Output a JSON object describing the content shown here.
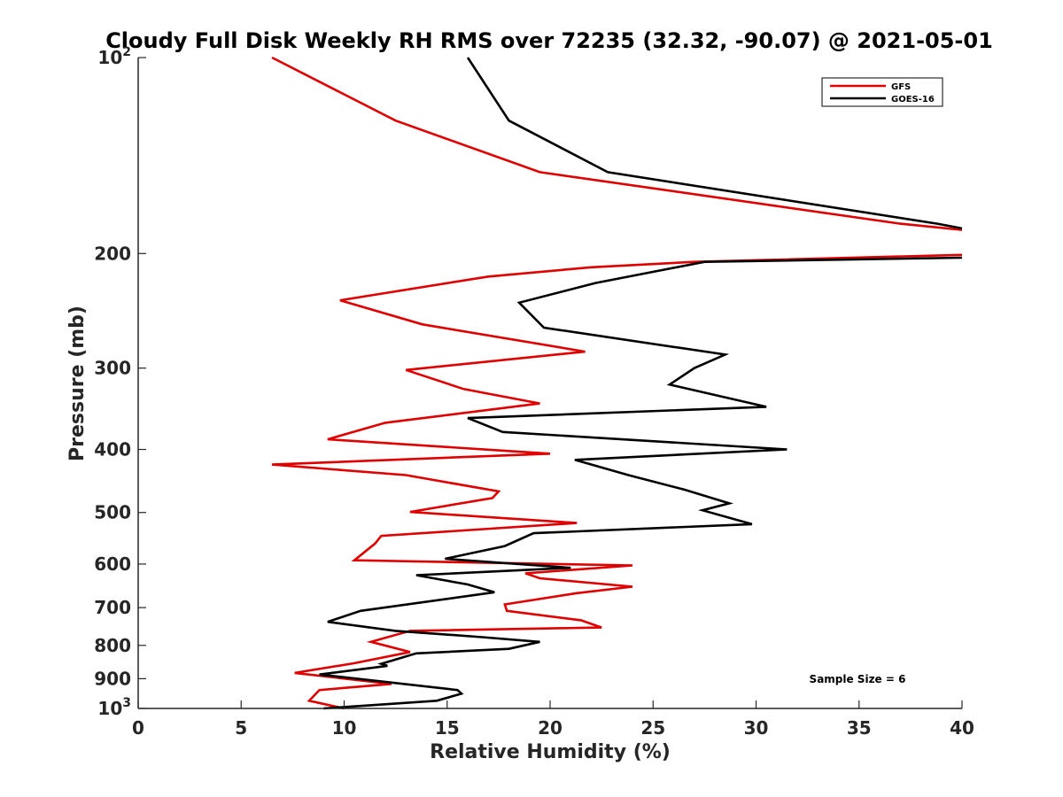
{
  "chart_data": {
    "type": "line",
    "title": "Cloudy Full Disk Weekly RH RMS over 72235 (32.32, -90.07) @ 2021-05-01",
    "xlabel": "Relative Humidity (%)",
    "ylabel": "Pressure (mb)",
    "xlim": [
      0,
      40
    ],
    "ylim": [
      100,
      1000
    ],
    "yscale": "log",
    "y_reversed": true,
    "grid": false,
    "legend_position": "top-right",
    "x_ticks": [
      0,
      5,
      10,
      15,
      20,
      25,
      30,
      35,
      40
    ],
    "x_tick_labels": [
      "0",
      "5",
      "10",
      "15",
      "20",
      "25",
      "30",
      "35",
      "40"
    ],
    "y_ticks": [
      {
        "value": 100,
        "base": "10",
        "exp": "2"
      },
      {
        "value": 200,
        "label": "200"
      },
      {
        "value": 300,
        "label": "300"
      },
      {
        "value": 400,
        "label": "400"
      },
      {
        "value": 500,
        "label": "500"
      },
      {
        "value": 600,
        "label": "600"
      },
      {
        "value": 700,
        "label": "700"
      },
      {
        "value": 800,
        "label": "800"
      },
      {
        "value": 900,
        "label": "900"
      },
      {
        "value": 1000,
        "base": "10",
        "exp": "3"
      }
    ],
    "series": [
      {
        "name": "GFS",
        "color": "#e00000",
        "points": [
          [
            6.5,
            100
          ],
          [
            12.5,
            125
          ],
          [
            19.5,
            150
          ],
          [
            37.0,
            180
          ],
          [
            40.0,
            184
          ],
          [
            null,
            null
          ],
          [
            40.0,
            201
          ],
          [
            27.0,
            206
          ],
          [
            22.0,
            210
          ],
          [
            17.0,
            217
          ],
          [
            9.8,
            236
          ],
          [
            13.8,
            257
          ],
          [
            21.7,
            283
          ],
          [
            13.0,
            302
          ],
          [
            15.8,
            323
          ],
          [
            19.5,
            340
          ],
          [
            12.0,
            364
          ],
          [
            9.2,
            386
          ],
          [
            20.0,
            406
          ],
          [
            6.5,
            422
          ],
          [
            13.0,
            438
          ],
          [
            17.5,
            464
          ],
          [
            17.2,
            475
          ],
          [
            13.2,
            499
          ],
          [
            21.3,
            519
          ],
          [
            11.8,
            543
          ],
          [
            11.5,
            558
          ],
          [
            10.5,
            592
          ],
          [
            24.0,
            603
          ],
          [
            18.8,
            620
          ],
          [
            19.5,
            631
          ],
          [
            24.0,
            650
          ],
          [
            21.3,
            665
          ],
          [
            17.8,
            692
          ],
          [
            17.9,
            708
          ],
          [
            21.5,
            732
          ],
          [
            22.5,
            751
          ],
          [
            13.2,
            760
          ],
          [
            11.3,
            790
          ],
          [
            13.2,
            819
          ],
          [
            10.5,
            852
          ],
          [
            7.6,
            882
          ],
          [
            12.3,
            917
          ],
          [
            8.8,
            937
          ],
          [
            8.3,
            973
          ],
          [
            10.0,
            1000
          ]
        ]
      },
      {
        "name": "GOES-16",
        "color": "#000000",
        "points": [
          [
            16.0,
            100
          ],
          [
            18.0,
            125
          ],
          [
            22.8,
            150
          ],
          [
            38.8,
            180
          ],
          [
            40.0,
            183
          ],
          [
            null,
            null
          ],
          [
            40.0,
            203
          ],
          [
            27.5,
            206
          ],
          [
            22.2,
            222
          ],
          [
            18.5,
            238
          ],
          [
            19.7,
            260
          ],
          [
            28.5,
            286
          ],
          [
            27.0,
            300
          ],
          [
            25.8,
            318
          ],
          [
            30.5,
            344
          ],
          [
            16.0,
            358
          ],
          [
            17.7,
            376
          ],
          [
            31.5,
            400
          ],
          [
            21.2,
            415
          ],
          [
            23.8,
            438
          ],
          [
            26.5,
            461
          ],
          [
            28.7,
            484
          ],
          [
            27.4,
            496
          ],
          [
            29.8,
            521
          ],
          [
            19.2,
            538
          ],
          [
            17.8,
            563
          ],
          [
            14.9,
            589
          ],
          [
            21.0,
            608
          ],
          [
            13.5,
            624
          ],
          [
            16.0,
            645
          ],
          [
            17.3,
            663
          ],
          [
            10.8,
            708
          ],
          [
            9.2,
            736
          ],
          [
            12.5,
            760
          ],
          [
            16.7,
            777
          ],
          [
            19.5,
            790
          ],
          [
            18.0,
            810
          ],
          [
            13.5,
            823
          ],
          [
            11.8,
            854
          ],
          [
            12.1,
            860
          ],
          [
            8.8,
            887
          ],
          [
            15.5,
            937
          ],
          [
            15.7,
            949
          ],
          [
            14.5,
            973
          ],
          [
            9.0,
            1000
          ]
        ]
      }
    ],
    "annotation": "Sample Size = 6"
  }
}
